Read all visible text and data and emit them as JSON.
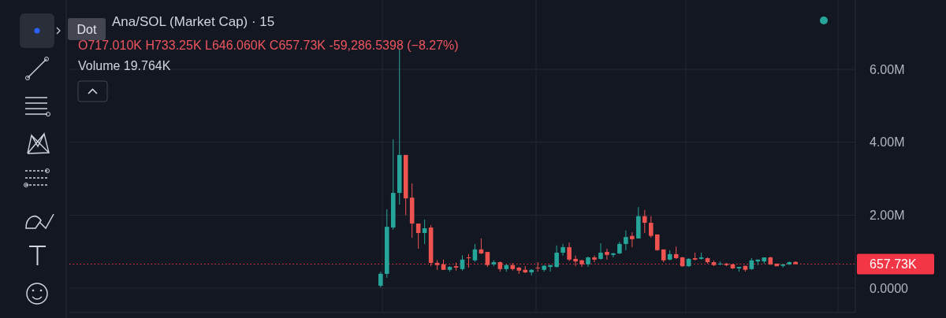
{
  "chart_data": {
    "type": "candlestick",
    "title": "Ana/SOL (Market Cap) · 15",
    "annotations": [
      "Dot",
      "O717.010K H733.25K L646.060K C657.73K -59,286.5398 (−8.27%)",
      "Volume 19.764K"
    ],
    "categories": [
      null,
      null,
      null,
      null,
      null,
      null,
      null,
      null,
      null,
      null,
      null,
      null,
      null,
      null,
      null,
      null,
      null,
      null,
      null,
      null,
      null,
      null,
      null,
      null,
      null,
      null,
      null,
      null,
      null,
      null,
      null,
      null,
      null,
      null,
      null,
      null,
      null,
      null,
      null,
      null,
      null,
      null,
      null,
      null,
      null,
      null,
      null,
      null,
      null,
      null,
      null,
      null,
      null,
      null,
      null,
      null,
      null,
      null,
      null,
      null,
      null,
      null,
      null,
      null,
      null,
      null,
      null,
      null,
      null,
      null,
      null,
      null,
      null,
      null,
      null,
      null,
      null,
      null,
      null,
      null,
      null,
      null,
      null,
      null,
      null,
      null,
      null,
      null,
      null,
      null,
      null,
      null,
      null,
      null,
      null,
      null,
      null,
      null,
      null,
      null,
      null,
      null,
      null,
      null,
      null,
      null,
      null,
      null,
      null,
      null,
      null,
      null,
      null,
      null,
      null,
      null,
      null,
      null,
      null,
      null,
      null,
      null,
      null,
      null,
      null
    ],
    "ohlc": [
      null,
      null,
      null,
      null,
      null,
      null,
      null,
      null,
      null,
      null,
      null,
      null,
      null,
      null,
      null,
      null,
      null,
      null,
      null,
      null,
      null,
      null,
      null,
      null,
      null,
      null,
      null,
      null,
      null,
      null,
      null,
      null,
      null,
      null,
      null,
      null,
      null,
      null,
      null,
      null,
      null,
      null,
      null,
      null,
      null,
      null,
      null,
      null,
      null,
      [
        65000,
        450000,
        20000,
        390000
      ],
      [
        390000,
        2160000,
        280000,
        1680000
      ],
      [
        1660000,
        4080000,
        1600000,
        2610000
      ],
      [
        2610000,
        6540000,
        2290000,
        3650000
      ],
      [
        3650000,
        3650000,
        2000000,
        2460000
      ],
      [
        2480000,
        2870000,
        1380000,
        1770000
      ],
      [
        1770000,
        1770000,
        1080000,
        1510000
      ],
      [
        1510000,
        1880000,
        1210000,
        1640000
      ],
      [
        1660000,
        1730000,
        600000,
        690000
      ],
      [
        690000,
        760000,
        500000,
        630000
      ],
      [
        650000,
        780000,
        500000,
        500000
      ],
      [
        500000,
        600000,
        450000,
        580000
      ],
      [
        600000,
        700000,
        480000,
        560000
      ],
      [
        520000,
        900000,
        480000,
        780000
      ],
      [
        840000,
        930000,
        560000,
        820000
      ],
      [
        760000,
        1210000,
        720000,
        1060000
      ],
      [
        1060000,
        1360000,
        930000,
        950000
      ],
      [
        990000,
        990000,
        580000,
        630000
      ],
      [
        650000,
        760000,
        600000,
        710000
      ],
      [
        710000,
        730000,
        450000,
        520000
      ],
      [
        520000,
        650000,
        450000,
        630000
      ],
      [
        630000,
        690000,
        480000,
        520000
      ],
      [
        560000,
        580000,
        390000,
        480000
      ],
      [
        500000,
        600000,
        410000,
        430000
      ],
      [
        430000,
        520000,
        350000,
        500000
      ],
      [
        560000,
        710000,
        450000,
        540000
      ],
      [
        500000,
        630000,
        450000,
        610000
      ],
      [
        580000,
        630000,
        450000,
        630000
      ],
      [
        580000,
        1170000,
        560000,
        970000
      ],
      [
        970000,
        1210000,
        890000,
        1120000
      ],
      [
        1120000,
        1250000,
        740000,
        780000
      ],
      [
        800000,
        890000,
        600000,
        730000
      ],
      [
        760000,
        780000,
        580000,
        650000
      ],
      [
        650000,
        860000,
        580000,
        840000
      ],
      [
        840000,
        890000,
        710000,
        780000
      ],
      [
        800000,
        1230000,
        780000,
        970000
      ],
      [
        990000,
        1080000,
        780000,
        910000
      ],
      [
        910000,
        970000,
        840000,
        950000
      ],
      [
        950000,
        1270000,
        930000,
        1210000
      ],
      [
        1210000,
        1580000,
        1040000,
        1400000
      ],
      [
        1430000,
        1530000,
        1120000,
        1340000
      ],
      [
        1360000,
        2220000,
        1360000,
        1970000
      ],
      [
        1970000,
        2140000,
        1510000,
        1790000
      ],
      [
        1790000,
        1970000,
        1380000,
        1430000
      ],
      [
        1470000,
        1470000,
        1020000,
        1040000
      ],
      [
        1060000,
        1060000,
        710000,
        760000
      ],
      [
        780000,
        1040000,
        760000,
        930000
      ],
      [
        930000,
        1140000,
        800000,
        820000
      ],
      [
        840000,
        860000,
        580000,
        600000
      ],
      [
        600000,
        820000,
        580000,
        800000
      ],
      [
        820000,
        970000,
        760000,
        780000
      ],
      [
        800000,
        970000,
        780000,
        840000
      ],
      [
        820000,
        840000,
        670000,
        710000
      ],
      [
        710000,
        760000,
        600000,
        630000
      ],
      [
        650000,
        730000,
        630000,
        670000
      ],
      [
        670000,
        690000,
        600000,
        630000
      ],
      [
        650000,
        670000,
        520000,
        540000
      ],
      [
        540000,
        580000,
        450000,
        580000
      ],
      [
        610000,
        610000,
        450000,
        500000
      ],
      [
        520000,
        820000,
        500000,
        760000
      ],
      [
        730000,
        780000,
        630000,
        780000
      ],
      [
        730000,
        840000,
        670000,
        840000
      ],
      [
        840000,
        860000,
        630000,
        650000
      ],
      [
        670000,
        670000,
        600000,
        600000
      ],
      [
        610000,
        650000,
        560000,
        650000
      ],
      [
        650000,
        730000,
        630000,
        710000
      ],
      [
        717010,
        733250,
        646060,
        657730
      ],
      null,
      null,
      null,
      null,
      null,
      null,
      null,
      null,
      null
    ],
    "ylim": [
      -670000,
      7900000
    ],
    "yticks": [
      {
        "value": 0,
        "label": "0.0000"
      },
      {
        "value": 2000000,
        "label": "2.00M"
      },
      {
        "value": 4000000,
        "label": "4.00M"
      },
      {
        "value": 6000000,
        "label": "6.00M"
      }
    ],
    "grid": true,
    "ref_lines": [
      {
        "axis": "y",
        "value": 657730,
        "label": "657.73K",
        "color": "#f23645",
        "line_style": "dotted"
      }
    ]
  }
}
